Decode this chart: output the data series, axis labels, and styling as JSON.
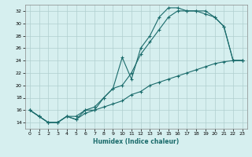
{
  "xlabel": "Humidex (Indice chaleur)",
  "ylabel": "",
  "background_color": "#d6efef",
  "grid_color": "#b0cfcf",
  "line_color": "#1a6b6b",
  "xlim": [
    -0.5,
    23.5
  ],
  "ylim": [
    13,
    33
  ],
  "xticks": [
    0,
    1,
    2,
    3,
    4,
    5,
    6,
    7,
    8,
    9,
    10,
    11,
    12,
    13,
    14,
    15,
    16,
    17,
    18,
    19,
    20,
    21,
    22,
    23
  ],
  "yticks": [
    14,
    16,
    18,
    20,
    22,
    24,
    26,
    28,
    30,
    32
  ],
  "line1_x": [
    0,
    1,
    2,
    3,
    4,
    5,
    6,
    7,
    8,
    9,
    10,
    11,
    12,
    13,
    14,
    15,
    16,
    17,
    18,
    19,
    20,
    21,
    22,
    23
  ],
  "line1_y": [
    16,
    15,
    14,
    14,
    15,
    15,
    16,
    16,
    18,
    19.5,
    24.5,
    21,
    26,
    28,
    31,
    32.5,
    32.5,
    32,
    32,
    31.5,
    31,
    29.5,
    24,
    24
  ],
  "line2_x": [
    0,
    1,
    2,
    3,
    4,
    5,
    6,
    7,
    8,
    9,
    10,
    11,
    12,
    13,
    14,
    15,
    16,
    17,
    18,
    19,
    20,
    21,
    22,
    23
  ],
  "line2_y": [
    16,
    15,
    14,
    14,
    15,
    14.5,
    16,
    16.5,
    18,
    19.5,
    20,
    22,
    25,
    27,
    29,
    31,
    32,
    32,
    32,
    32,
    31,
    29.5,
    24,
    24
  ],
  "line3_x": [
    0,
    1,
    2,
    3,
    4,
    5,
    6,
    7,
    8,
    9,
    10,
    11,
    12,
    13,
    14,
    15,
    16,
    17,
    18,
    19,
    20,
    21,
    22,
    23
  ],
  "line3_y": [
    16,
    15,
    14,
    14,
    15,
    14.5,
    15.5,
    16,
    16.5,
    17,
    17.5,
    18.5,
    19,
    20,
    20.5,
    21,
    21.5,
    22,
    22.5,
    23,
    23.5,
    23.8,
    24,
    24
  ]
}
